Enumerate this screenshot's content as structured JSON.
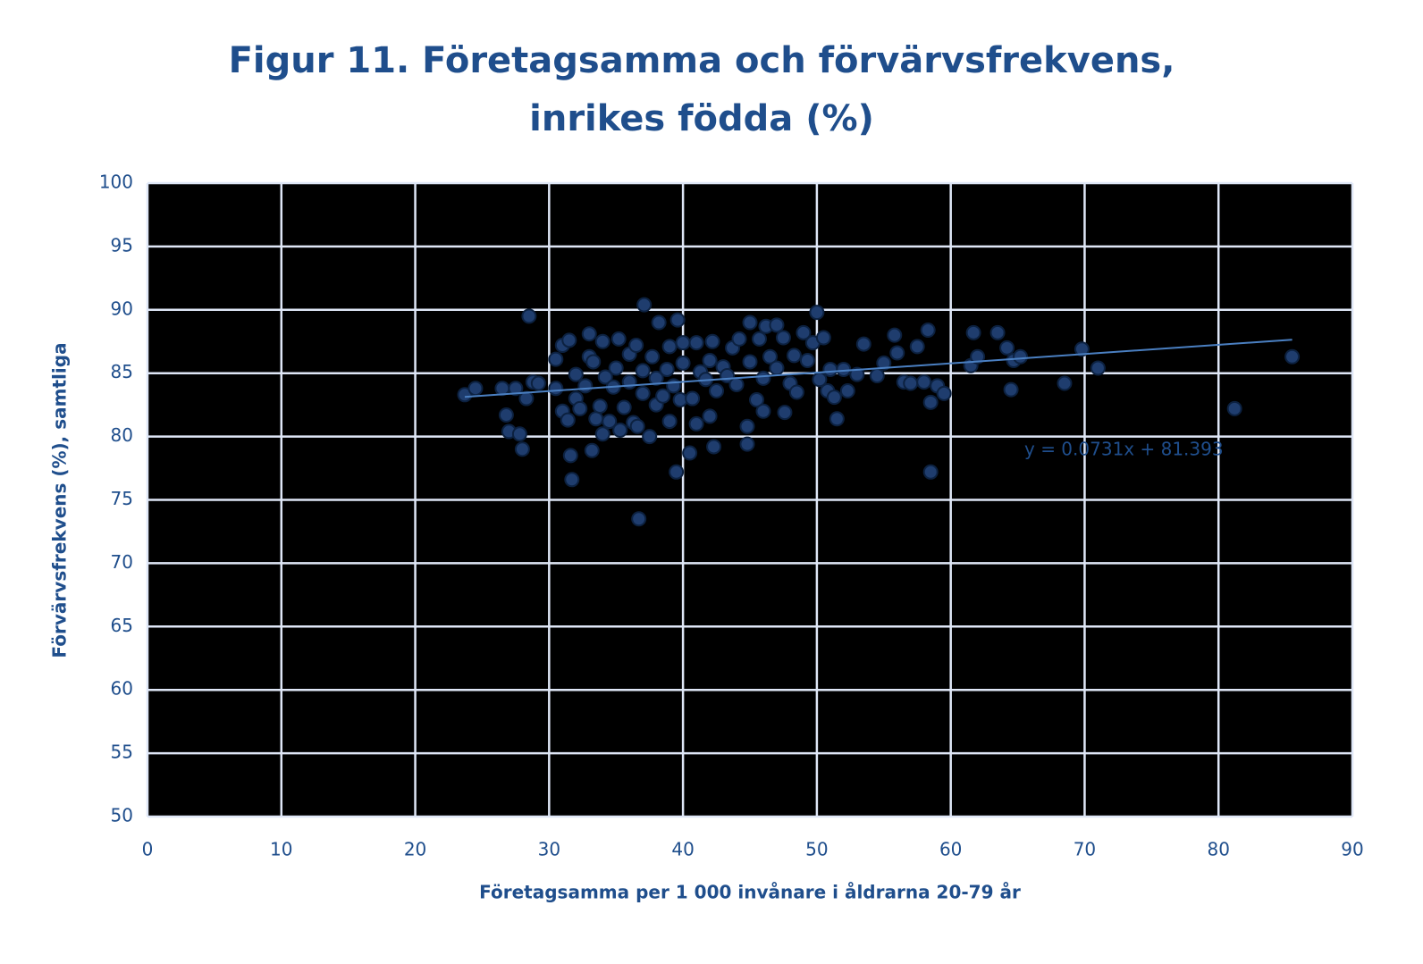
{
  "chart_data": {
    "type": "scatter",
    "title": [
      "Figur 11. Företagsamma och förvärvsfrekvens,",
      "inrikes födda (%)"
    ],
    "x_label": "Företagsamma per 1 000 invånare i åldrarna 20-79 år",
    "y_label": "Förvärvsfrekvens (%), samtliga",
    "xlim": [
      0,
      90
    ],
    "ylim": [
      50,
      100
    ],
    "xticks": [
      0,
      10,
      20,
      30,
      40,
      50,
      60,
      70,
      80,
      90
    ],
    "yticks": [
      50,
      55,
      60,
      65,
      70,
      75,
      80,
      85,
      90,
      95,
      100
    ],
    "grid": true,
    "color": "#1f3d6e",
    "trendline": {
      "label": "y = 0.0731x + 81.393",
      "slope": 0.0731,
      "intercept": 81.393,
      "xrange": [
        23.7,
        85.5
      ],
      "color": "#4a7fc1"
    },
    "x": [
      23.7,
      24.5,
      26.5,
      26.8,
      27,
      27.5,
      27.8,
      28,
      28.3,
      28.5,
      28.8,
      29.2,
      30.5,
      30.5,
      31,
      31,
      31.4,
      31.5,
      31.6,
      31.7,
      32,
      32,
      32.3,
      32.7,
      33,
      33,
      33.2,
      33.3,
      33.5,
      33.8,
      34,
      34,
      34.2,
      34.5,
      34.8,
      35,
      35.2,
      35.3,
      35.6,
      36,
      36,
      36.3,
      36.5,
      36.6,
      36.7,
      37,
      37,
      37.1,
      37.5,
      37.7,
      38,
      38,
      38.2,
      38.5,
      38.8,
      39,
      39,
      39.3,
      39.5,
      39.6,
      39.8,
      40,
      40,
      40.5,
      40.7,
      41,
      41,
      41.3,
      41.7,
      42,
      42,
      42.2,
      42.3,
      42.5,
      43,
      43.3,
      43.7,
      44,
      44.2,
      44.8,
      44.8,
      45,
      45,
      45.5,
      45.7,
      46,
      46,
      46.2,
      46.5,
      47,
      47,
      47.5,
      47.6,
      48,
      48.3,
      48.5,
      49,
      49.3,
      49.7,
      50,
      50.2,
      50.5,
      50.8,
      51,
      51.3,
      51.5,
      52,
      52.3,
      53,
      53.5,
      54.5,
      55,
      55.8,
      56,
      56.5,
      57,
      57.5,
      58,
      58.3,
      58.5,
      58.5,
      59,
      59.5,
      61.5,
      61.7,
      62,
      63.5,
      64.2,
      64.5,
      64.7,
      65.2,
      68.5,
      69.8,
      71,
      81.2,
      85.5
    ],
    "y": [
      83.3,
      83.8,
      83.8,
      81.7,
      80.4,
      83.8,
      80.2,
      79.0,
      83,
      89.5,
      84.3,
      84.2,
      83.8,
      86.1,
      82.0,
      87.2,
      81.3,
      87.6,
      78.5,
      76.6,
      84.9,
      83.0,
      82.2,
      84.0,
      88.1,
      86.3,
      78.9,
      85.9,
      81.4,
      82.4,
      80.2,
      87.5,
      84.7,
      81.2,
      83.9,
      85.4,
      87.7,
      80.5,
      82.3,
      84.3,
      86.5,
      81.1,
      87.2,
      80.8,
      73.5,
      83.4,
      85.2,
      90.4,
      80.0,
      86.3,
      82.5,
      84.6,
      89.0,
      83.2,
      85.3,
      81.2,
      87.1,
      84.0,
      77.2,
      89.2,
      82.9,
      85.8,
      87.4,
      78.7,
      83.0,
      81.0,
      87.4,
      85.1,
      84.5,
      81.6,
      86.0,
      87.5,
      79.2,
      83.6,
      85.5,
      84.8,
      87.0,
      84.1,
      87.7,
      79.4,
      80.8,
      85.9,
      89.0,
      82.9,
      87.7,
      82.0,
      84.6,
      88.7,
      86.3,
      85.4,
      88.8,
      87.8,
      81.9,
      84.2,
      86.4,
      83.5,
      88.2,
      86.0,
      87.4,
      89.8,
      84.5,
      87.8,
      83.6,
      85.3,
      83.1,
      81.4,
      85.3,
      83.6,
      84.9,
      87.3,
      84.8,
      85.8,
      88.0,
      86.6,
      84.3,
      84.2,
      87.1,
      84.3,
      88.4,
      82.7,
      77.2,
      84,
      83.4,
      85.6,
      88.2,
      86.3,
      88.2,
      87.0,
      83.7,
      86.0,
      86.3,
      84.2,
      86.9,
      85.4,
      82.2,
      86.3
    ]
  }
}
